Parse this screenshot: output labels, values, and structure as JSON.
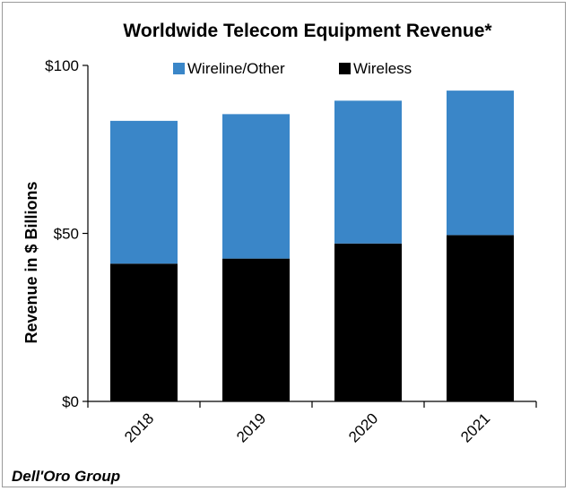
{
  "chart_data": {
    "type": "bar",
    "stacked": true,
    "title": "Worldwide Telecom Equipment Revenue*",
    "ylabel": "Revenue in $ Billions",
    "xlabel": "",
    "categories": [
      "2018",
      "2019",
      "2020",
      "2021"
    ],
    "series": [
      {
        "name": "Wireless",
        "values": [
          41,
          42.5,
          47,
          49.5
        ],
        "color": "#000000"
      },
      {
        "name": "Wireline/Other",
        "values": [
          42.5,
          43,
          42.5,
          43
        ],
        "color": "#3a86c8"
      }
    ],
    "legend_order": [
      "Wireline/Other",
      "Wireless"
    ],
    "legend_position": "top",
    "ylim": [
      0,
      100
    ],
    "yticks": [
      0,
      50,
      100
    ],
    "ytick_labels": [
      "$0",
      "$50",
      "$100"
    ],
    "grid": false,
    "source": "Dell'Oro Group"
  }
}
